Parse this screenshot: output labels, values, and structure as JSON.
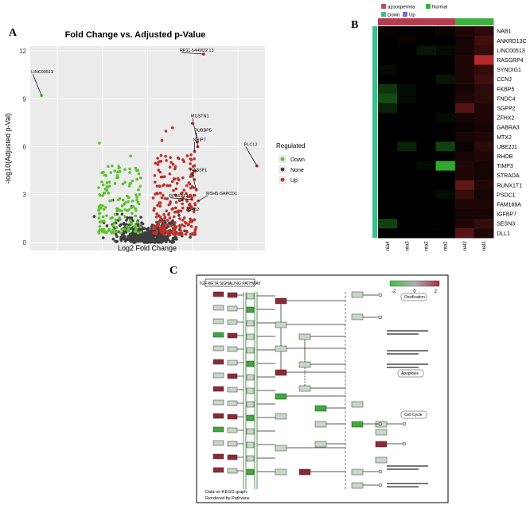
{
  "panels": {
    "a": {
      "letter": "A",
      "chart_data": {
        "type": "scatter",
        "title": "Fold Change vs. Adjusted p-Value",
        "xlabel": "Log2 Fold Change",
        "ylabel": "-log10(Adjusted p-Val)",
        "xlim": [
          -26,
          26
        ],
        "ylim": [
          -0.5,
          12.3
        ],
        "x_ticks": [
          -20,
          -10,
          0,
          10,
          20
        ],
        "y_ticks": [
          0,
          3,
          6,
          9,
          12
        ],
        "legend_title": "Regulated",
        "legend_position": "right",
        "series": [
          {
            "name": "Down",
            "color": "#5ec22e"
          },
          {
            "name": "None",
            "color": "#3d3d3d"
          },
          {
            "name": "Up",
            "color": "#c0302a"
          }
        ],
        "labeled_points": [
          {
            "label": "LINC00513",
            "x": -23.5,
            "y": 9.2,
            "series": "Down"
          },
          {
            "label": "RP11-544M22.13",
            "x": 12.4,
            "y": 11.8,
            "series": "Up"
          },
          {
            "label": "PLCL2",
            "x": 24.2,
            "y": 4.8,
            "series": "Up"
          },
          {
            "label": "MUSTN1",
            "x": 11.0,
            "y": 6.3,
            "series": "Up"
          },
          {
            "label": "TUBBP5",
            "x": 11.1,
            "y": 6.0,
            "series": "Up"
          },
          {
            "label": "NRIP7",
            "x": 10.4,
            "y": 5.7,
            "series": "Up"
          },
          {
            "label": "RASSF1",
            "x": 10.8,
            "y": 3.3,
            "series": "Up"
          },
          {
            "label": "RPS6P12",
            "x": 9.8,
            "y": 2.7,
            "series": "Up"
          },
          {
            "label": "MSH5-SAPCD1",
            "x": 11.2,
            "y": 2.6,
            "series": "Up"
          },
          {
            "label": "ZBTB2",
            "x": 10.2,
            "y": 2.1,
            "series": "Up"
          }
        ]
      }
    },
    "b": {
      "letter": "B",
      "legend": [
        {
          "label": "azoospermia",
          "color": "#c9465a"
        },
        {
          "label": "Normal",
          "color": "#3fae3f"
        },
        {
          "label": "Down",
          "color": "#3dbf8c"
        },
        {
          "label": "Up",
          "color": "#7b6fd0"
        }
      ],
      "chart_data": {
        "type": "heatmap",
        "samples": [
          "azoospermia4",
          "azoospermia3",
          "azoospermia2",
          "azoospermia1",
          "Normal2",
          "Normal1"
        ],
        "sample_groups": [
          "azoospermia",
          "azoospermia",
          "azoospermia",
          "azoospermia",
          "Normal",
          "Normal"
        ],
        "genes": [
          "NAB1",
          "ANKRD13C",
          "LINC00513",
          "RASGRP4",
          "SYNDIG1",
          "CCNJ",
          "FKBP5",
          "FNDC4",
          "SGPP2",
          "ZFHX2",
          "GABRA3",
          "MTX2",
          "UBE2J1",
          "RHOB",
          "TIMP3",
          "STRADA",
          "RUNX1T1",
          "PSDC1",
          "FAM169A",
          "IGFBP7",
          "SESN3",
          "DLL1"
        ],
        "color_scale": {
          "low": "#39d439",
          "mid": "#000000",
          "high": "#d43030",
          "range": [
            -2,
            2
          ]
        },
        "values": [
          [
            0.1,
            0.0,
            0.0,
            0.1,
            0.3,
            0.4
          ],
          [
            0.0,
            0.1,
            0.0,
            0.0,
            0.2,
            0.6
          ],
          [
            0.0,
            0.0,
            -0.2,
            -0.1,
            0.2,
            0.5
          ],
          [
            0.0,
            0.0,
            0.0,
            0.0,
            0.3,
            1.7
          ],
          [
            -0.1,
            0.0,
            0.0,
            0.0,
            0.3,
            0.5
          ],
          [
            0.0,
            0.0,
            0.0,
            -0.2,
            0.3,
            0.6
          ],
          [
            -0.5,
            -0.1,
            0.0,
            0.0,
            0.2,
            0.4
          ],
          [
            -0.7,
            -0.1,
            0.0,
            0.0,
            0.3,
            0.4
          ],
          [
            -0.3,
            0.0,
            0.0,
            0.0,
            0.8,
            0.3
          ],
          [
            0.0,
            0.0,
            0.0,
            -0.1,
            0.2,
            0.3
          ],
          [
            0.0,
            0.0,
            0.0,
            0.0,
            0.1,
            0.2
          ],
          [
            0.0,
            0.0,
            0.0,
            0.0,
            0.2,
            0.3
          ],
          [
            0.0,
            -0.3,
            0.0,
            -0.6,
            0.1,
            0.4
          ],
          [
            0.0,
            0.0,
            0.0,
            0.0,
            0.2,
            0.3
          ],
          [
            0.0,
            0.0,
            -0.1,
            -1.6,
            0.3,
            0.2
          ],
          [
            0.0,
            0.0,
            0.0,
            0.0,
            0.3,
            0.2
          ],
          [
            0.0,
            0.0,
            0.0,
            0.0,
            0.9,
            0.3
          ],
          [
            0.0,
            0.0,
            0.0,
            -0.1,
            0.5,
            0.2
          ],
          [
            0.0,
            0.0,
            0.0,
            0.0,
            0.3,
            0.3
          ],
          [
            0.0,
            0.0,
            0.0,
            0.0,
            0.2,
            0.2
          ],
          [
            -0.6,
            0.0,
            0.0,
            0.0,
            0.3,
            0.5
          ],
          [
            0.0,
            0.0,
            0.0,
            0.0,
            0.8,
            0.3
          ]
        ]
      }
    },
    "c": {
      "letter": "C",
      "pathway_title": "TGF-BETA SIGNALING PATHWAY",
      "scale": {
        "min_label": "-2",
        "mid_label": "0",
        "max_label": "2",
        "low_color": "#39c439",
        "mid_color": "#b0b0b0",
        "high_color": "#b02a3a"
      },
      "outcome_labels": [
        "Ossification",
        "Apoptosis",
        "Cell Cycle"
      ],
      "footer_line1": "Data on KEGG graph",
      "footer_line2": "Rendered by Pathview"
    }
  }
}
